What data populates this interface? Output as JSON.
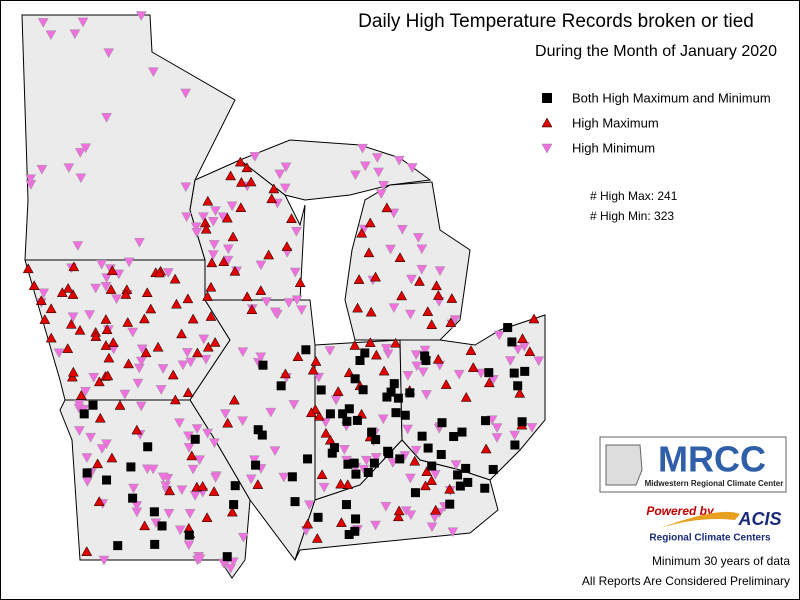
{
  "header": {
    "title": "Daily High Temperature Records broken or tied",
    "subtitle": "During the Month of January 2020"
  },
  "legend": {
    "items": [
      "Both High Maximum and Minimum",
      "High Maximum",
      "High Minimum"
    ]
  },
  "counts": [
    "# High Max: 241",
    "# High Min: 323"
  ],
  "logo": {
    "name": "MRCC",
    "full_name": "Midwestern Regional Climate Center",
    "powered": "Powered by",
    "acis": "ACIS",
    "rcc": "Regional Climate Centers"
  },
  "footer": [
    "Minimum 30 years of data",
    "All Reports Are Considered Preliminary"
  ]
}
